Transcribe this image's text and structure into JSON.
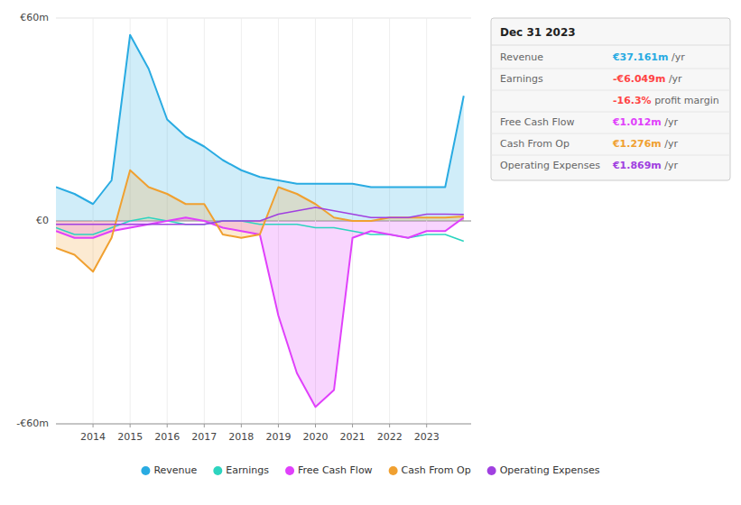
{
  "chart_data": {
    "type": "area",
    "x": [
      2013.0,
      2013.5,
      2014.0,
      2014.5,
      2015.0,
      2015.5,
      2016.0,
      2016.5,
      2017.0,
      2017.5,
      2018.0,
      2018.5,
      2019.0,
      2019.5,
      2020.0,
      2020.5,
      2021.0,
      2021.5,
      2022.0,
      2022.5,
      2023.0,
      2023.5,
      2024.0
    ],
    "series": [
      {
        "name": "Revenue",
        "color": "#29abe2",
        "type": "area",
        "values": [
          10,
          8,
          5,
          12,
          55,
          45,
          30,
          25,
          22,
          18,
          15,
          13,
          12,
          11,
          11,
          11,
          11,
          10,
          10,
          10,
          10,
          10,
          37
        ]
      },
      {
        "name": "Earnings",
        "color": "#2dd4bf",
        "type": "line",
        "values": [
          -2,
          -4,
          -4,
          -2,
          0,
          1,
          0,
          -1,
          -1,
          0,
          0,
          -1,
          -1,
          -1,
          -2,
          -2,
          -3,
          -4,
          -4,
          -5,
          -4,
          -4,
          -6
        ]
      },
      {
        "name": "Free Cash Flow",
        "color": "#e040fb",
        "type": "area",
        "values": [
          -3,
          -5,
          -5,
          -3,
          -2,
          -1,
          0,
          1,
          0,
          -2,
          -3,
          -4,
          -28,
          -45,
          -55,
          -50,
          -5,
          -3,
          -4,
          -5,
          -3,
          -3,
          1
        ]
      },
      {
        "name": "Cash From Op",
        "color": "#f0a030",
        "type": "area",
        "values": [
          -8,
          -10,
          -15,
          -5,
          15,
          10,
          8,
          5,
          5,
          -4,
          -5,
          -4,
          10,
          8,
          5,
          1,
          0,
          0,
          1,
          1,
          1,
          1,
          1.3
        ]
      },
      {
        "name": "Operating Expenses",
        "color": "#a040e0",
        "type": "line",
        "values": [
          -1,
          -1,
          -1,
          -1,
          -1,
          -1,
          -1,
          -1,
          -1,
          0,
          0,
          0,
          2,
          3,
          4,
          3,
          2,
          1,
          1,
          1,
          2,
          2,
          1.9
        ]
      }
    ],
    "xlim": [
      2013,
      2024.2
    ],
    "xticks": [
      2014,
      2015,
      2016,
      2017,
      2018,
      2019,
      2020,
      2021,
      2022,
      2023
    ],
    "ylim": [
      -60,
      60
    ],
    "yticks": [
      {
        "value": 60,
        "label": "€60m"
      },
      {
        "value": 0,
        "label": "€0"
      },
      {
        "value": -60,
        "label": "-€60m"
      }
    ],
    "grid": true,
    "legend": "bottom",
    "annotations": {
      "title": "Dec 31 2023",
      "rows": [
        {
          "label": "Revenue",
          "value": "€37.161m",
          "unit": " /yr",
          "color": "#29abe2"
        },
        {
          "label": "Earnings",
          "value": "-€6.049m",
          "unit": " /yr",
          "color": "#ff4444"
        },
        {
          "value": "-16.3%",
          "unit": " profit margin",
          "color": "#ff4444"
        },
        {
          "label": "Free Cash Flow",
          "value": "€1.012m",
          "unit": " /yr",
          "color": "#e040fb"
        },
        {
          "label": "Cash From Op",
          "value": "€1.276m",
          "unit": " /yr",
          "color": "#f0a030"
        },
        {
          "label": "Operating Expenses",
          "value": "€1.869m",
          "unit": " /yr",
          "color": "#a040e0"
        }
      ]
    }
  }
}
